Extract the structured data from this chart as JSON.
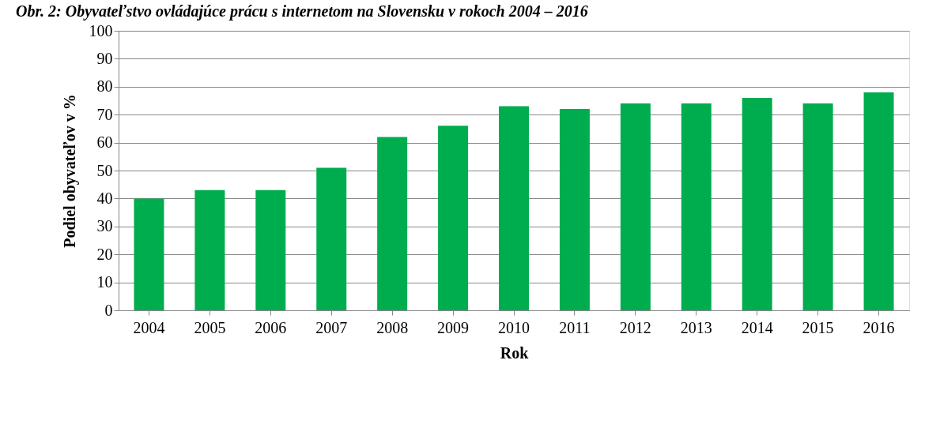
{
  "chart_data": {
    "type": "bar",
    "title": "Obr. 2: Obyvateľstvo ovládajúce prácu s internetom na Slovensku v rokoch 2004 – 2016",
    "xlabel": "Rok",
    "ylabel": "Podiel obyvateľov v %",
    "categories": [
      "2004",
      "2005",
      "2006",
      "2007",
      "2008",
      "2009",
      "2010",
      "2011",
      "2012",
      "2013",
      "2014",
      "2015",
      "2016"
    ],
    "values": [
      40,
      43,
      43,
      51,
      62,
      66,
      73,
      72,
      74,
      74,
      76,
      74,
      78
    ],
    "color": "#00ad4e",
    "ylim": [
      0,
      100
    ],
    "yticks": [
      0,
      10,
      20,
      30,
      40,
      50,
      60,
      70,
      80,
      90,
      100
    ],
    "grid": "y"
  }
}
